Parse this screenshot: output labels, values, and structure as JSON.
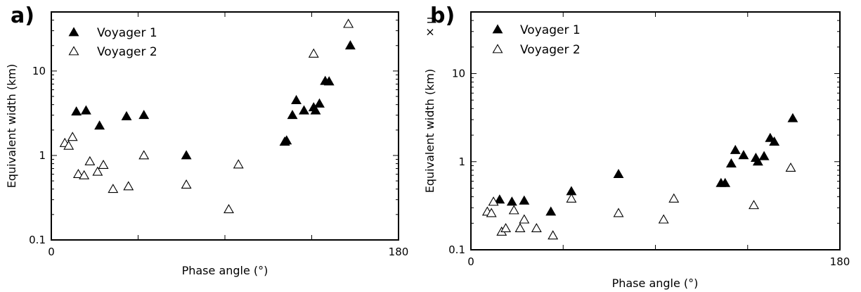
{
  "chart_data": [
    {
      "type": "scatter",
      "panel_label": "a)",
      "xlabel": "Phase angle (°)",
      "ylabel": "Equivalent width (km)",
      "ylabel_suffix": "",
      "xlim": [
        0,
        180
      ],
      "ylim": [
        0.1,
        50
      ],
      "yscale": "log",
      "x_tick_labels": [
        "0",
        "180"
      ],
      "y_tick_labels": [
        "0.1",
        "1",
        "10"
      ],
      "legend_position": "top-left",
      "series": [
        {
          "name": "Voyager 1",
          "marker": "filled-triangle",
          "points": [
            [
              13,
              3.3
            ],
            [
              18,
              3.4
            ],
            [
              25,
              2.25
            ],
            [
              39,
              2.9
            ],
            [
              48,
              3.0
            ],
            [
              70,
              1.0
            ],
            [
              121,
              1.45
            ],
            [
              122,
              1.5
            ],
            [
              125,
              3.0
            ],
            [
              127,
              4.5
            ],
            [
              131,
              3.4
            ],
            [
              136,
              3.7
            ],
            [
              137,
              3.4
            ],
            [
              139,
              4.1
            ],
            [
              142,
              7.6
            ],
            [
              144,
              7.5
            ],
            [
              155,
              20
            ]
          ]
        },
        {
          "name": "Voyager 2",
          "marker": "open-triangle",
          "points": [
            [
              7,
              1.4
            ],
            [
              9,
              1.3
            ],
            [
              11,
              1.65
            ],
            [
              14,
              0.6
            ],
            [
              17,
              0.58
            ],
            [
              20,
              0.85
            ],
            [
              24,
              0.64
            ],
            [
              27,
              0.77
            ],
            [
              32,
              0.4
            ],
            [
              40,
              0.43
            ],
            [
              48,
              1.0
            ],
            [
              70,
              0.45
            ],
            [
              92,
              0.23
            ],
            [
              97,
              0.78
            ],
            [
              136,
              16
            ],
            [
              154,
              36
            ]
          ]
        }
      ]
    },
    {
      "type": "scatter",
      "panel_label": "b)",
      "xlabel": "Phase angle (°)",
      "ylabel": "Equivalent width (km)",
      "ylabel_suffix": "× μ",
      "xlim": [
        0,
        180
      ],
      "ylim": [
        0.1,
        50
      ],
      "yscale": "log",
      "x_tick_labels": [
        "0",
        "180"
      ],
      "y_tick_labels": [
        "0.1",
        "1",
        "10"
      ],
      "legend_position": "top-left",
      "series": [
        {
          "name": "Voyager 1",
          "marker": "filled-triangle",
          "points": [
            [
              14,
              0.37
            ],
            [
              20,
              0.35
            ],
            [
              26,
              0.36
            ],
            [
              39,
              0.27
            ],
            [
              49,
              0.46
            ],
            [
              72,
              0.72
            ],
            [
              122,
              0.57
            ],
            [
              124,
              0.57
            ],
            [
              127,
              0.95
            ],
            [
              129,
              1.35
            ],
            [
              133,
              1.18
            ],
            [
              139,
              1.1
            ],
            [
              140,
              1.0
            ],
            [
              143,
              1.15
            ],
            [
              146,
              1.85
            ],
            [
              148,
              1.68
            ],
            [
              157,
              3.1
            ]
          ]
        },
        {
          "name": "Voyager 2",
          "marker": "open-triangle",
          "points": [
            [
              8,
              0.27
            ],
            [
              10,
              0.26
            ],
            [
              11,
              0.35
            ],
            [
              15,
              0.16
            ],
            [
              17,
              0.175
            ],
            [
              21,
              0.28
            ],
            [
              24,
              0.175
            ],
            [
              26,
              0.22
            ],
            [
              32,
              0.175
            ],
            [
              40,
              0.145
            ],
            [
              49,
              0.38
            ],
            [
              72,
              0.26
            ],
            [
              94,
              0.22
            ],
            [
              99,
              0.38
            ],
            [
              138,
              0.32
            ],
            [
              156,
              0.85
            ]
          ]
        }
      ]
    }
  ]
}
